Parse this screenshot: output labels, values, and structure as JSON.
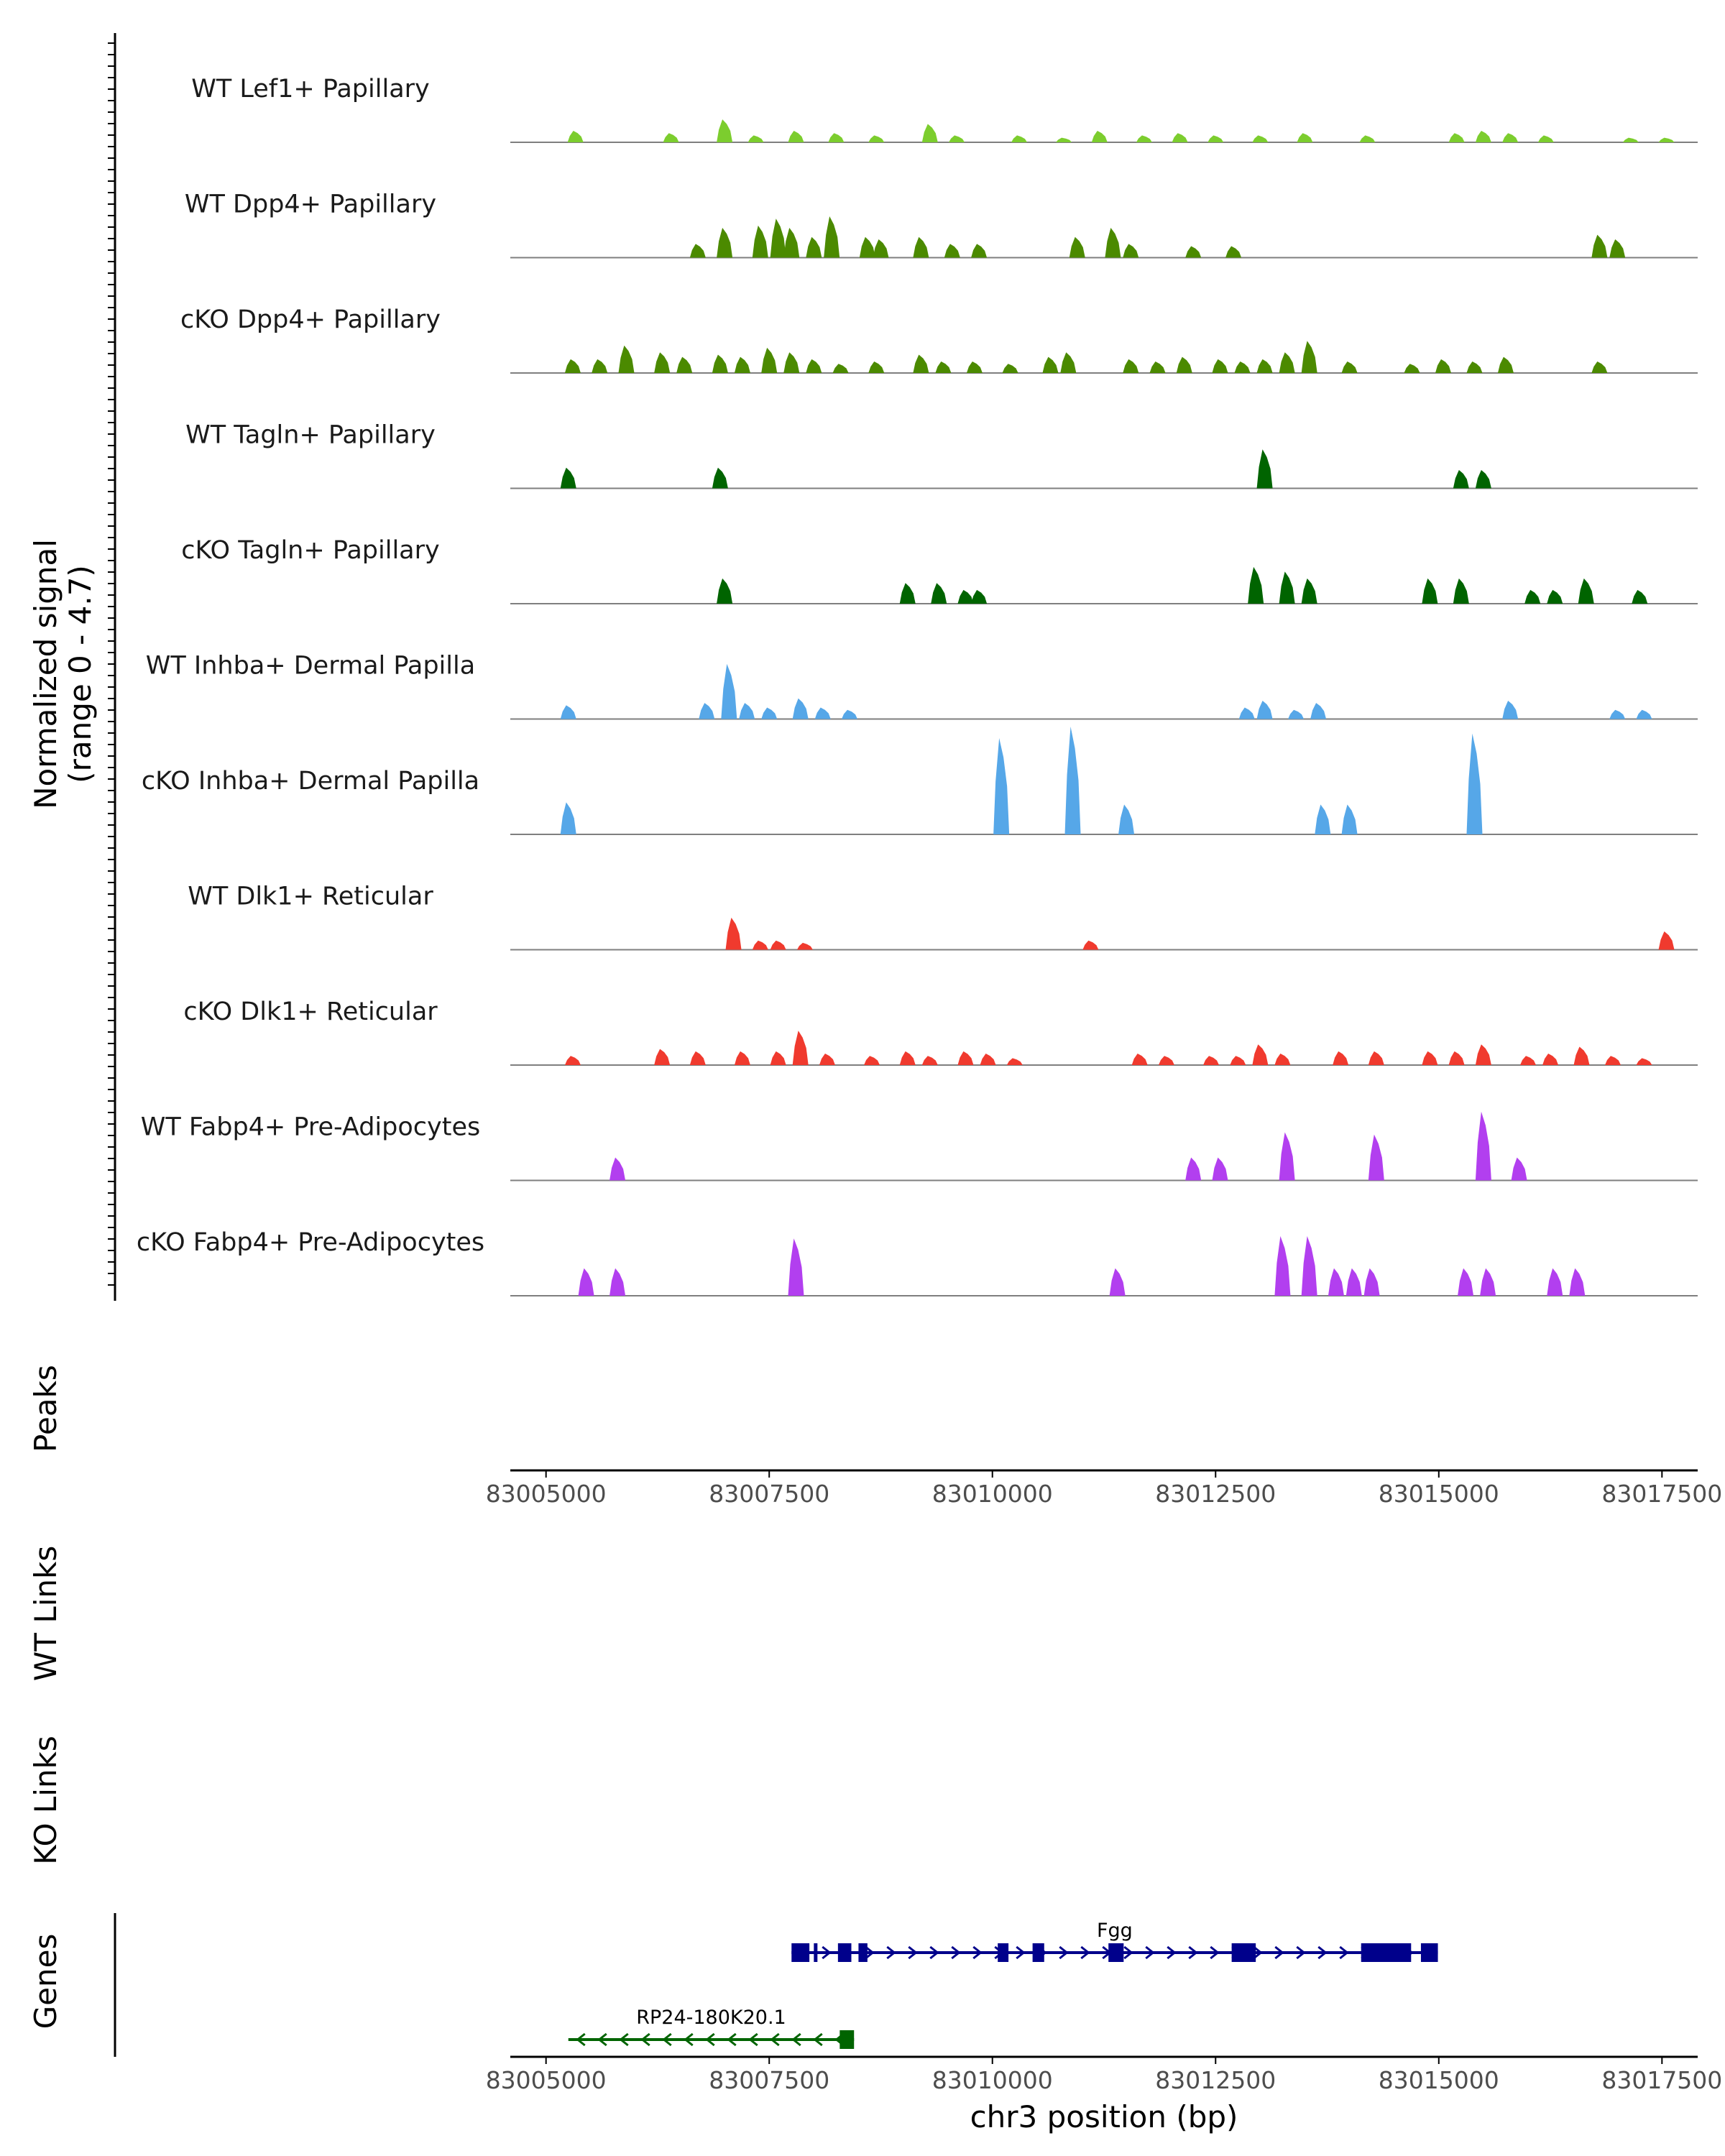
{
  "chart_data": {
    "type": "area",
    "title": "",
    "signal_axis_label": "Normalized signal",
    "signal_axis_sublabel": "(range 0 - 4.7)",
    "signal_range": [
      0,
      4.7
    ],
    "xlabel": "chr3 position (bp)",
    "xlim": [
      83004600,
      83017900
    ],
    "x_ticks": [
      83005000,
      83007500,
      83010000,
      83012500,
      83015000,
      83017500
    ],
    "x_tick_labels": [
      "83005000",
      "83007500",
      "83010000",
      "83012500",
      "83015000",
      "83017500"
    ],
    "panel_labels": {
      "peaks": "Peaks",
      "wt_links": "WT Links",
      "ko_links": "KO Links",
      "genes": "Genes"
    },
    "tracks": [
      {
        "name": "WT Lef1+ Papillary",
        "color": "#7ccd2e",
        "peaks": [
          [
            83005330,
            0.5
          ],
          [
            83006400,
            0.4
          ],
          [
            83007000,
            1.0
          ],
          [
            83007350,
            0.3
          ],
          [
            83007800,
            0.5
          ],
          [
            83008250,
            0.4
          ],
          [
            83008700,
            0.3
          ],
          [
            83009300,
            0.8
          ],
          [
            83009600,
            0.3
          ],
          [
            83010300,
            0.3
          ],
          [
            83010800,
            0.2
          ],
          [
            83011200,
            0.5
          ],
          [
            83011700,
            0.3
          ],
          [
            83012100,
            0.4
          ],
          [
            83012500,
            0.3
          ],
          [
            83013000,
            0.3
          ],
          [
            83013500,
            0.4
          ],
          [
            83014200,
            0.3
          ],
          [
            83015200,
            0.4
          ],
          [
            83015500,
            0.5
          ],
          [
            83015800,
            0.4
          ],
          [
            83016200,
            0.3
          ],
          [
            83017150,
            0.2
          ],
          [
            83017550,
            0.2
          ]
        ]
      },
      {
        "name": "WT Dpp4+ Papillary",
        "color": "#4b8a00",
        "peaks": [
          [
            83006700,
            0.6
          ],
          [
            83007000,
            1.3
          ],
          [
            83007400,
            1.4
          ],
          [
            83007600,
            1.7
          ],
          [
            83007750,
            1.3
          ],
          [
            83008000,
            0.9
          ],
          [
            83008200,
            1.8
          ],
          [
            83008600,
            0.9
          ],
          [
            83008750,
            0.8
          ],
          [
            83009200,
            0.9
          ],
          [
            83009550,
            0.6
          ],
          [
            83009850,
            0.6
          ],
          [
            83010950,
            0.9
          ],
          [
            83011350,
            1.3
          ],
          [
            83011550,
            0.6
          ],
          [
            83012250,
            0.5
          ],
          [
            83012700,
            0.5
          ],
          [
            83016800,
            1.0
          ],
          [
            83017000,
            0.8
          ]
        ]
      },
      {
        "name": "cKO Dpp4+ Papillary",
        "color": "#4b8a00",
        "peaks": [
          [
            83005300,
            0.6
          ],
          [
            83005600,
            0.6
          ],
          [
            83005900,
            1.2
          ],
          [
            83006300,
            0.9
          ],
          [
            83006550,
            0.7
          ],
          [
            83006950,
            0.8
          ],
          [
            83007200,
            0.7
          ],
          [
            83007500,
            1.1
          ],
          [
            83007750,
            0.9
          ],
          [
            83008000,
            0.6
          ],
          [
            83008300,
            0.4
          ],
          [
            83008700,
            0.5
          ],
          [
            83009200,
            0.8
          ],
          [
            83009450,
            0.5
          ],
          [
            83009800,
            0.5
          ],
          [
            83010200,
            0.4
          ],
          [
            83010650,
            0.7
          ],
          [
            83010850,
            0.9
          ],
          [
            83011550,
            0.6
          ],
          [
            83011850,
            0.5
          ],
          [
            83012150,
            0.7
          ],
          [
            83012550,
            0.6
          ],
          [
            83012800,
            0.5
          ],
          [
            83013050,
            0.6
          ],
          [
            83013300,
            0.9
          ],
          [
            83013550,
            1.4
          ],
          [
            83014000,
            0.5
          ],
          [
            83014700,
            0.4
          ],
          [
            83015050,
            0.6
          ],
          [
            83015400,
            0.5
          ],
          [
            83015750,
            0.7
          ],
          [
            83016800,
            0.5
          ]
        ]
      },
      {
        "name": "WT Tagln+ Papillary",
        "color": "#006400",
        "peaks": [
          [
            83005250,
            0.9
          ],
          [
            83006950,
            0.9
          ],
          [
            83013050,
            1.7
          ],
          [
            83015250,
            0.8
          ],
          [
            83015500,
            0.8
          ]
        ]
      },
      {
        "name": "cKO Tagln+ Papillary",
        "color": "#006400",
        "peaks": [
          [
            83007000,
            1.1
          ],
          [
            83009050,
            0.9
          ],
          [
            83009400,
            0.9
          ],
          [
            83009700,
            0.6
          ],
          [
            83009850,
            0.6
          ],
          [
            83012950,
            1.6
          ],
          [
            83013300,
            1.4
          ],
          [
            83013550,
            1.1
          ],
          [
            83014900,
            1.1
          ],
          [
            83015250,
            1.1
          ],
          [
            83016050,
            0.6
          ],
          [
            83016300,
            0.6
          ],
          [
            83016650,
            1.1
          ],
          [
            83017250,
            0.6
          ]
        ]
      },
      {
        "name": "WT Inhba+ Dermal Papilla",
        "color": "#56a7e8",
        "peaks": [
          [
            83005250,
            0.6
          ],
          [
            83006800,
            0.7
          ],
          [
            83007050,
            2.4
          ],
          [
            83007250,
            0.7
          ],
          [
            83007500,
            0.5
          ],
          [
            83007850,
            0.9
          ],
          [
            83008100,
            0.5
          ],
          [
            83008400,
            0.4
          ],
          [
            83012850,
            0.5
          ],
          [
            83013050,
            0.8
          ],
          [
            83013400,
            0.4
          ],
          [
            83013650,
            0.7
          ],
          [
            83015800,
            0.8
          ],
          [
            83017000,
            0.4
          ],
          [
            83017300,
            0.4
          ]
        ]
      },
      {
        "name": "cKO Inhba+ Dermal Papilla",
        "color": "#56a7e8",
        "peaks": [
          [
            83005250,
            1.4
          ],
          [
            83010100,
            4.2
          ],
          [
            83010900,
            4.7
          ],
          [
            83011500,
            1.3
          ],
          [
            83013700,
            1.3
          ],
          [
            83014000,
            1.3
          ],
          [
            83015400,
            4.4
          ]
        ]
      },
      {
        "name": "WT Dlk1+ Reticular",
        "color": "#f03a2e",
        "peaks": [
          [
            83007100,
            1.4
          ],
          [
            83007400,
            0.4
          ],
          [
            83007600,
            0.4
          ],
          [
            83007900,
            0.3
          ],
          [
            83011100,
            0.4
          ],
          [
            83017550,
            0.8
          ]
        ]
      },
      {
        "name": "cKO Dlk1+ Reticular",
        "color": "#f03a2e",
        "peaks": [
          [
            83005300,
            0.4
          ],
          [
            83006300,
            0.7
          ],
          [
            83006700,
            0.6
          ],
          [
            83007200,
            0.6
          ],
          [
            83007600,
            0.6
          ],
          [
            83007850,
            1.5
          ],
          [
            83008150,
            0.5
          ],
          [
            83008650,
            0.4
          ],
          [
            83009050,
            0.6
          ],
          [
            83009300,
            0.4
          ],
          [
            83009700,
            0.6
          ],
          [
            83009950,
            0.5
          ],
          [
            83010250,
            0.3
          ],
          [
            83011650,
            0.5
          ],
          [
            83011950,
            0.4
          ],
          [
            83012450,
            0.4
          ],
          [
            83012750,
            0.4
          ],
          [
            83013000,
            0.9
          ],
          [
            83013250,
            0.5
          ],
          [
            83013900,
            0.6
          ],
          [
            83014300,
            0.6
          ],
          [
            83014900,
            0.6
          ],
          [
            83015200,
            0.6
          ],
          [
            83015500,
            0.9
          ],
          [
            83016000,
            0.4
          ],
          [
            83016250,
            0.5
          ],
          [
            83016600,
            0.8
          ],
          [
            83016950,
            0.4
          ],
          [
            83017300,
            0.3
          ]
        ]
      },
      {
        "name": "WT Fabp4+ Pre-Adipocytes",
        "color": "#b23fef",
        "peaks": [
          [
            83005800,
            1.0
          ],
          [
            83012250,
            1.0
          ],
          [
            83012550,
            1.0
          ],
          [
            83013300,
            2.1
          ],
          [
            83014300,
            2.0
          ],
          [
            83015500,
            3.0
          ],
          [
            83015900,
            1.0
          ]
        ]
      },
      {
        "name": "cKO Fabp4+ Pre-Adipocytes",
        "color": "#b23fef",
        "peaks": [
          [
            83005450,
            1.2
          ],
          [
            83005800,
            1.2
          ],
          [
            83007800,
            2.5
          ],
          [
            83011400,
            1.2
          ],
          [
            83013250,
            2.6
          ],
          [
            83013550,
            2.6
          ],
          [
            83013850,
            1.2
          ],
          [
            83014050,
            1.2
          ],
          [
            83014250,
            1.2
          ],
          [
            83015300,
            1.2
          ],
          [
            83015550,
            1.2
          ],
          [
            83016300,
            1.2
          ],
          [
            83016550,
            1.2
          ]
        ]
      }
    ],
    "genes": [
      {
        "name": "Fgg",
        "color": "#00008b",
        "strand": "+",
        "start": 83007750,
        "end": 83014990,
        "exons": [
          [
            83007750,
            83007950
          ],
          [
            83008000,
            83008020
          ],
          [
            83008270,
            83008420
          ],
          [
            83008500,
            83008600
          ],
          [
            83010060,
            83010180
          ],
          [
            83010450,
            83010580
          ],
          [
            83011300,
            83011470
          ],
          [
            83012680,
            83012950
          ],
          [
            83014130,
            83014690
          ],
          [
            83014800,
            83014990
          ]
        ]
      },
      {
        "name": "RP24-180K20.1",
        "color": "#006400",
        "strand": "-",
        "start": 83005250,
        "end": 83008450,
        "exons": [
          [
            83008290,
            83008450
          ]
        ]
      }
    ]
  }
}
